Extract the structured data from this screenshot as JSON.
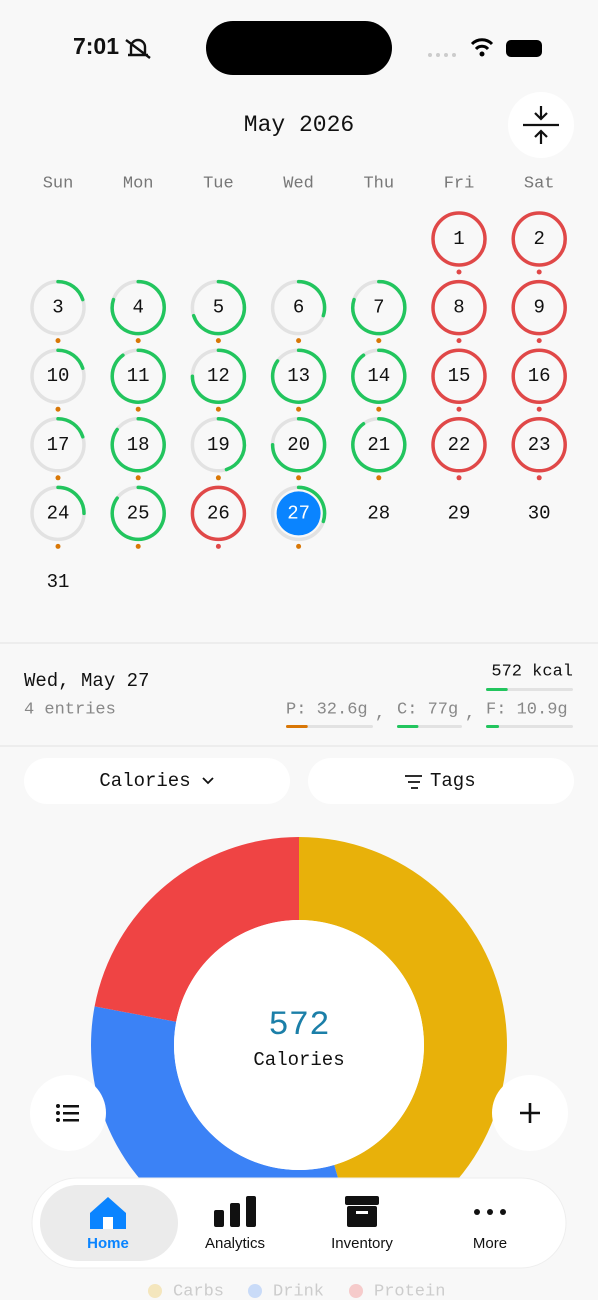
{
  "status_bar": {
    "time": "7:01"
  },
  "calendar": {
    "title": "May 2026",
    "weekdays": [
      "Sun",
      "Mon",
      "Tue",
      "Wed",
      "Thu",
      "Fri",
      "Sat"
    ],
    "weeks": [
      [
        null,
        null,
        null,
        null,
        null,
        {
          "label": "1",
          "status": "over"
        },
        {
          "label": "2",
          "status": "over"
        }
      ],
      [
        {
          "label": "3",
          "status": "under",
          "progress": 0.2
        },
        {
          "label": "4",
          "status": "under",
          "progress": 0.8
        },
        {
          "label": "5",
          "status": "under",
          "progress": 0.7
        },
        {
          "label": "6",
          "status": "under",
          "progress": 0.3
        },
        {
          "label": "7",
          "status": "under",
          "progress": 0.8
        },
        {
          "label": "8",
          "status": "over"
        },
        {
          "label": "9",
          "status": "over"
        }
      ],
      [
        {
          "label": "10",
          "status": "under",
          "progress": 0.2
        },
        {
          "label": "11",
          "status": "under",
          "progress": 0.9
        },
        {
          "label": "12",
          "status": "under",
          "progress": 0.75
        },
        {
          "label": "13",
          "status": "under",
          "progress": 0.85
        },
        {
          "label": "14",
          "status": "under",
          "progress": 0.9
        },
        {
          "label": "15",
          "status": "over"
        },
        {
          "label": "16",
          "status": "over"
        }
      ],
      [
        {
          "label": "17",
          "status": "under",
          "progress": 0.2
        },
        {
          "label": "18",
          "status": "under",
          "progress": 0.85
        },
        {
          "label": "19",
          "status": "under",
          "progress": 0.45
        },
        {
          "label": "20",
          "status": "under",
          "progress": 0.75
        },
        {
          "label": "21",
          "status": "under",
          "progress": 0.9
        },
        {
          "label": "22",
          "status": "over"
        },
        {
          "label": "23",
          "status": "over"
        }
      ],
      [
        {
          "label": "24",
          "status": "under",
          "progress": 0.25
        },
        {
          "label": "25",
          "status": "under",
          "progress": 0.85
        },
        {
          "label": "26",
          "status": "over"
        },
        {
          "label": "27",
          "status": "under",
          "progress": 0.3,
          "selected": true
        },
        {
          "label": "28",
          "status": "none"
        },
        {
          "label": "29",
          "status": "none"
        },
        {
          "label": "30",
          "status": "none"
        }
      ],
      [
        {
          "label": "31",
          "status": "none"
        },
        null,
        null,
        null,
        null,
        null,
        null
      ]
    ]
  },
  "summary": {
    "date": "Wed, May 27",
    "entries": "4 entries",
    "kcal": "572 kcal",
    "kcal_progress": 0.25,
    "separator": ",",
    "macros": [
      {
        "label": "P: 32.6g",
        "progress": 0.25,
        "color": "#D97706"
      },
      {
        "label": "C: 77g",
        "progress": 0.33,
        "color": "#22C55E"
      },
      {
        "label": "F: 10.9g",
        "progress": 0.15,
        "color": "#22C55E"
      }
    ]
  },
  "filters": {
    "metric": "Calories",
    "tags": "Tags"
  },
  "chart_data": {
    "type": "donut",
    "center_value": 572,
    "center_label": "Calories",
    "categories": [
      "Carbs",
      "Drink",
      "Protein"
    ],
    "values": [
      260,
      186,
      126
    ],
    "colors": [
      "#E8B10A",
      "#3B82F6",
      "#EF4444"
    ]
  },
  "tab_bar": {
    "items": [
      "Home",
      "Analytics",
      "Inventory",
      "More"
    ],
    "selected": 0
  }
}
